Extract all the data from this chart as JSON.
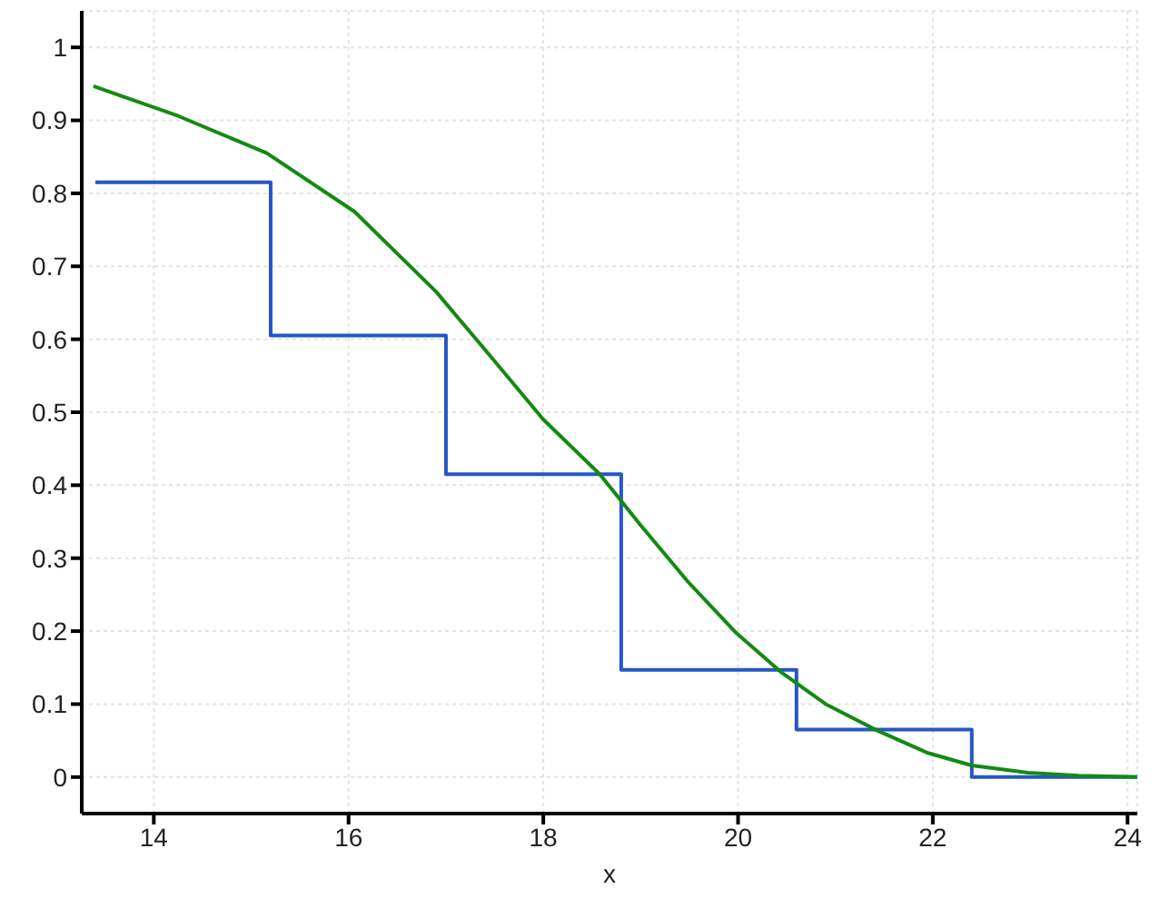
{
  "chart_data": {
    "type": "line",
    "xlabel": "x",
    "xlim": [
      13.26,
      24.1
    ],
    "xticks": [
      14,
      16,
      18,
      20,
      22,
      24
    ],
    "ylim": [
      -0.05,
      1.05
    ],
    "yticks": [
      0,
      0.1,
      0.2,
      0.3,
      0.4,
      0.5,
      0.6,
      0.7,
      0.8,
      0.9,
      1
    ],
    "grid": true,
    "marker": "none",
    "line_style": "solid",
    "series": [
      {
        "type": "step",
        "color": "#2457c5",
        "x": [
          13.4,
          15.2,
          17.0,
          18.8,
          20.6,
          22.4,
          24.1
        ],
        "values": [
          0.815,
          0.605,
          0.415,
          0.147,
          0.065,
          0,
          0
        ]
      },
      {
        "type": "line",
        "color": "#138a13",
        "x": [
          13.38,
          14.25,
          15.16,
          16.06,
          16.9,
          17.5,
          18.0,
          18.58,
          19.0,
          19.49,
          19.97,
          20.45,
          20.9,
          21.41,
          21.95,
          22.4,
          22.98,
          23.5,
          24.1
        ],
        "values": [
          0.947,
          0.906,
          0.855,
          0.775,
          0.665,
          0.57,
          0.49,
          0.415,
          0.345,
          0.267,
          0.199,
          0.143,
          0.1,
          0.065,
          0.033,
          0.016,
          0.006,
          0.002,
          0
        ]
      }
    ]
  }
}
